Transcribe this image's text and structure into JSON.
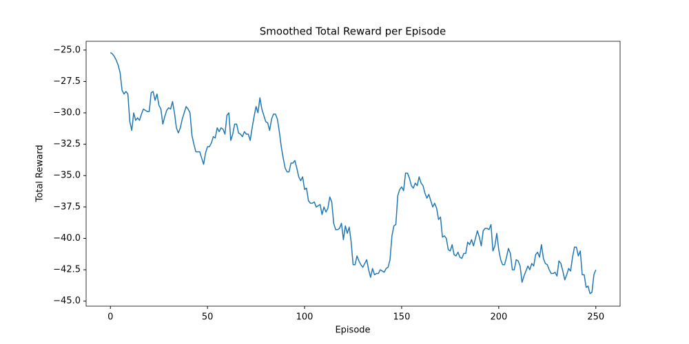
{
  "chart_data": {
    "type": "line",
    "title": "Smoothed Total Reward per Episode",
    "xlabel": "Episode",
    "ylabel": "Total Reward",
    "x": [
      0,
      1,
      2,
      3,
      4,
      5,
      6,
      7,
      8,
      9,
      10,
      11,
      12,
      13,
      14,
      15,
      16,
      17,
      18,
      19,
      20,
      21,
      22,
      23,
      24,
      25,
      26,
      27,
      28,
      29,
      30,
      31,
      32,
      33,
      34,
      35,
      36,
      37,
      38,
      39,
      40,
      41,
      42,
      43,
      44,
      45,
      46,
      47,
      48,
      49,
      50,
      51,
      52,
      53,
      54,
      55,
      56,
      57,
      58,
      59,
      60,
      61,
      62,
      63,
      64,
      65,
      66,
      67,
      68,
      69,
      70,
      71,
      72,
      73,
      74,
      75,
      76,
      77,
      78,
      79,
      80,
      81,
      82,
      83,
      84,
      85,
      86,
      87,
      88,
      89,
      90,
      91,
      92,
      93,
      94,
      95,
      96,
      97,
      98,
      99,
      100,
      101,
      102,
      103,
      104,
      105,
      106,
      107,
      108,
      109,
      110,
      111,
      112,
      113,
      114,
      115,
      116,
      117,
      118,
      119,
      120,
      121,
      122,
      123,
      124,
      125,
      126,
      127,
      128,
      129,
      130,
      131,
      132,
      133,
      134,
      135,
      136,
      137,
      138,
      139,
      140,
      141,
      142,
      143,
      144,
      145,
      146,
      147,
      148,
      149,
      150,
      151,
      152,
      153,
      154,
      155,
      156,
      157,
      158,
      159,
      160,
      161,
      162,
      163,
      164,
      165,
      166,
      167,
      168,
      169,
      170,
      171,
      172,
      173,
      174,
      175,
      176,
      177,
      178,
      179,
      180,
      181,
      182,
      183,
      184,
      185,
      186,
      187,
      188,
      189,
      190,
      191,
      192,
      193,
      194,
      195,
      196,
      197,
      198,
      199,
      200,
      201,
      202,
      203,
      204,
      205,
      206,
      207,
      208,
      209,
      210,
      211,
      212,
      213,
      214,
      215,
      216,
      217,
      218,
      219,
      220,
      221,
      222,
      223,
      224,
      225,
      226,
      227,
      228,
      229,
      230,
      231,
      232,
      233,
      234,
      235,
      236,
      237,
      238,
      239,
      240,
      241,
      242,
      243,
      244,
      245,
      246,
      247,
      248,
      249,
      250
    ],
    "series": [
      {
        "name": "Total Reward",
        "color": "#1f77b4",
        "values": [
          -25.2,
          -25.3,
          -25.5,
          -25.8,
          -26.2,
          -26.8,
          -28.2,
          -28.5,
          -28.3,
          -28.5,
          -30.7,
          -31.4,
          -30.0,
          -30.6,
          -30.4,
          -30.6,
          -30.1,
          -29.7,
          -29.8,
          -29.9,
          -29.9,
          -28.4,
          -28.3,
          -29.0,
          -28.5,
          -29.4,
          -29.7,
          -30.9,
          -30.3,
          -29.8,
          -29.6,
          -29.7,
          -29.1,
          -30.0,
          -31.2,
          -31.6,
          -31.2,
          -30.5,
          -30.0,
          -29.5,
          -29.7,
          -30.0,
          -31.8,
          -32.5,
          -33.1,
          -33.1,
          -33.1,
          -33.6,
          -34.1,
          -33.2,
          -32.7,
          -32.7,
          -32.4,
          -31.9,
          -32.0,
          -31.2,
          -31.5,
          -31.2,
          -31.3,
          -31.7,
          -30.2,
          -30.0,
          -32.2,
          -31.7,
          -30.9,
          -30.9,
          -31.6,
          -31.7,
          -31.9,
          -31.5,
          -31.7,
          -31.7,
          -32.2,
          -31.2,
          -30.3,
          -29.5,
          -30.0,
          -28.8,
          -29.7,
          -30.2,
          -30.7,
          -30.8,
          -31.4,
          -30.5,
          -30.1,
          -30.1,
          -30.5,
          -31.5,
          -32.7,
          -33.6,
          -34.4,
          -34.7,
          -34.7,
          -34.0,
          -34.0,
          -33.8,
          -34.4,
          -35.1,
          -35.4,
          -35.1,
          -36.1,
          -36.0,
          -37.0,
          -37.2,
          -37.2,
          -37.1,
          -37.5,
          -37.4,
          -37.3,
          -38.1,
          -37.5,
          -37.9,
          -37.6,
          -36.7,
          -37.1,
          -38.8,
          -39.3,
          -39.3,
          -39.2,
          -38.8,
          -40.1,
          -39.0,
          -39.6,
          -39.1,
          -40.3,
          -42.1,
          -42.1,
          -41.4,
          -41.8,
          -42.1,
          -42.3,
          -42.0,
          -41.7,
          -42.5,
          -43.1,
          -42.4,
          -42.9,
          -42.8,
          -42.8,
          -42.5,
          -42.6,
          -42.7,
          -42.4,
          -42.3,
          -41.7,
          -39.8,
          -39.0,
          -38.9,
          -36.6,
          -36.1,
          -35.9,
          -36.2,
          -34.8,
          -34.8,
          -35.2,
          -35.8,
          -36.0,
          -35.6,
          -35.8,
          -35.1,
          -35.6,
          -35.8,
          -36.4,
          -36.8,
          -36.5,
          -37.0,
          -37.5,
          -37.2,
          -37.6,
          -38.5,
          -38.3,
          -39.9,
          -39.8,
          -40.0,
          -40.9,
          -41.0,
          -40.5,
          -41.3,
          -41.4,
          -41.1,
          -41.5,
          -41.6,
          -41.2,
          -41.2,
          -40.3,
          -40.5,
          -40.1,
          -40.6,
          -40.0,
          -39.4,
          -39.9,
          -40.6,
          -39.4,
          -39.2,
          -39.2,
          -39.3,
          -38.9,
          -41.0,
          -40.6,
          -39.6,
          -40.9,
          -41.7,
          -42.1,
          -42.1,
          -41.5,
          -40.8,
          -41.2,
          -42.5,
          -42.5,
          -41.7,
          -41.8,
          -42.2,
          -43.5,
          -43.0,
          -42.6,
          -42.2,
          -42.5,
          -42.0,
          -42.2,
          -41.3,
          -41.1,
          -41.5,
          -40.5,
          -41.6,
          -42.0,
          -42.1,
          -42.5,
          -42.8,
          -42.8,
          -42.7,
          -43.0,
          -41.8,
          -42.0,
          -42.6,
          -43.3,
          -42.9,
          -42.4,
          -42.6,
          -41.5,
          -40.7,
          -40.7,
          -41.4,
          -41.0,
          -42.9,
          -42.9,
          -43.9,
          -43.8,
          -44.4,
          -44.3,
          -42.9,
          -42.5
        ]
      }
    ],
    "xlim": [
      -12.5,
      262.5
    ],
    "ylim": [
      -45.4,
      -24.3
    ],
    "xticks": [
      0,
      50,
      100,
      150,
      200,
      250
    ],
    "yticks": [
      {
        "value": -45,
        "label": "−45.0"
      },
      {
        "value": -42.5,
        "label": "−42.5"
      },
      {
        "value": -40,
        "label": "−40.0"
      },
      {
        "value": -37.5,
        "label": "−37.5"
      },
      {
        "value": -35,
        "label": "−35.0"
      },
      {
        "value": -32.5,
        "label": "−32.5"
      },
      {
        "value": -30,
        "label": "−30.0"
      },
      {
        "value": -27.5,
        "label": "−27.5"
      },
      {
        "value": -25,
        "label": "−25.0"
      }
    ]
  }
}
